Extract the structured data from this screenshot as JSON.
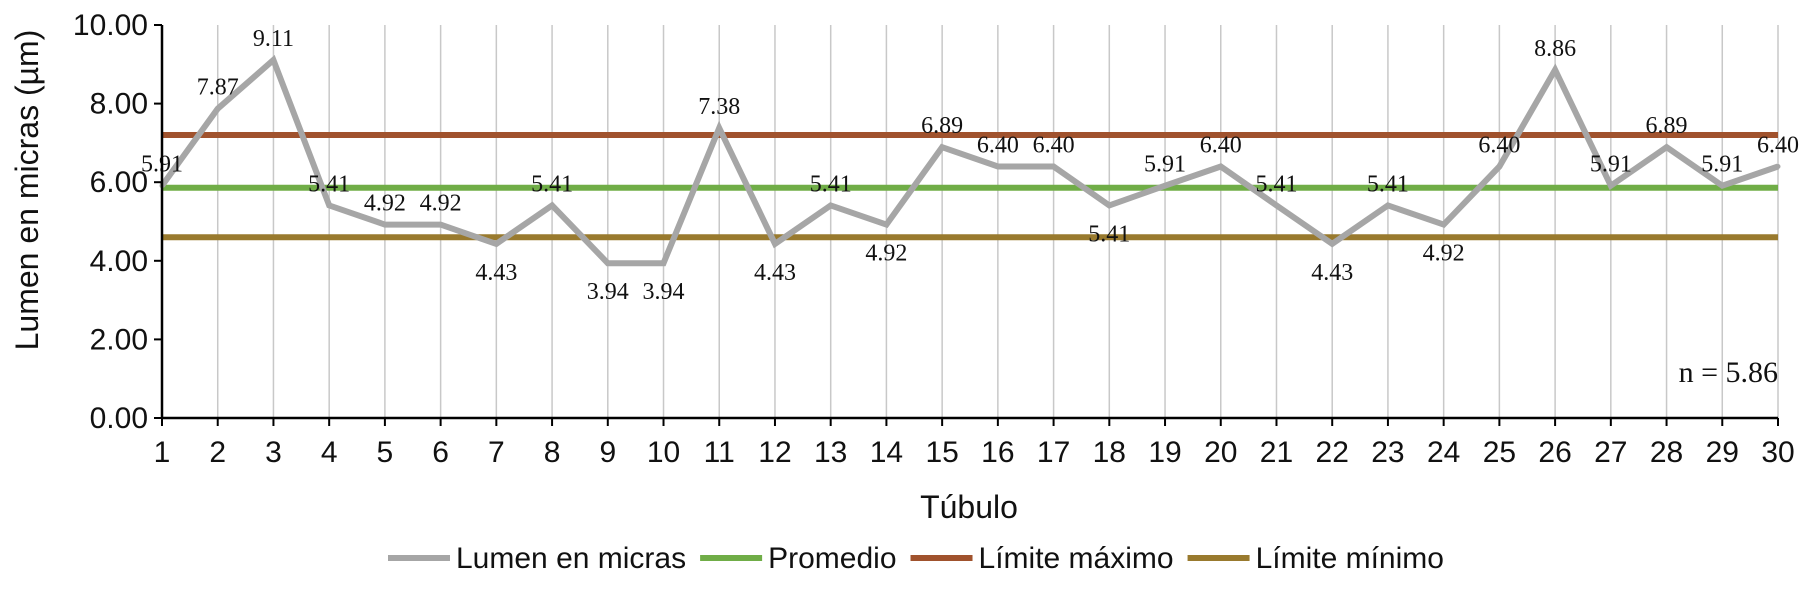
{
  "chart_data": {
    "type": "line",
    "xlabel": "Túbulo",
    "ylabel": "Lumen en micras (µm)",
    "ylim": [
      0,
      10
    ],
    "y_ticks": [
      "0.00",
      "2.00",
      "4.00",
      "6.00",
      "8.00",
      "10.00"
    ],
    "x": [
      1,
      2,
      3,
      4,
      5,
      6,
      7,
      8,
      9,
      10,
      11,
      12,
      13,
      14,
      15,
      16,
      17,
      18,
      19,
      20,
      21,
      22,
      23,
      24,
      25,
      26,
      27,
      28,
      29,
      30
    ],
    "series": [
      {
        "name": "Lumen en micras",
        "color": "#a6a6a6",
        "values": [
          5.91,
          7.87,
          9.11,
          5.41,
          4.92,
          4.92,
          4.43,
          5.41,
          3.94,
          3.94,
          7.38,
          4.43,
          5.41,
          4.92,
          6.89,
          6.4,
          6.4,
          5.41,
          5.91,
          6.4,
          5.41,
          4.43,
          5.41,
          4.92,
          6.4,
          8.86,
          5.91,
          6.89,
          5.91,
          6.4
        ],
        "data_labels": [
          "5.91",
          "7.87",
          "9.11",
          "5.41",
          "4.92",
          "4.92",
          "4.43",
          "5.41",
          "3.94",
          "3.94",
          "7.38",
          "4.43",
          "5.41",
          "4.92",
          "6.89",
          "6.40",
          "6.40",
          "5.41",
          "5.91",
          "6.40",
          "5.41",
          "4.43",
          "5.41",
          "4.92",
          "6.40",
          "8.86",
          "5.91",
          "6.89",
          "5.91",
          "6.40"
        ]
      },
      {
        "name": "Promedio",
        "color": "#70ad47",
        "value": 5.86
      },
      {
        "name": "Límite máximo",
        "color": "#a0522d",
        "value": 7.2
      },
      {
        "name": "Límite mínimo",
        "color": "#997a2e",
        "value": 4.6
      }
    ],
    "annotation": "n = 5.86",
    "grid": "vertical",
    "legend_position": "bottom"
  }
}
